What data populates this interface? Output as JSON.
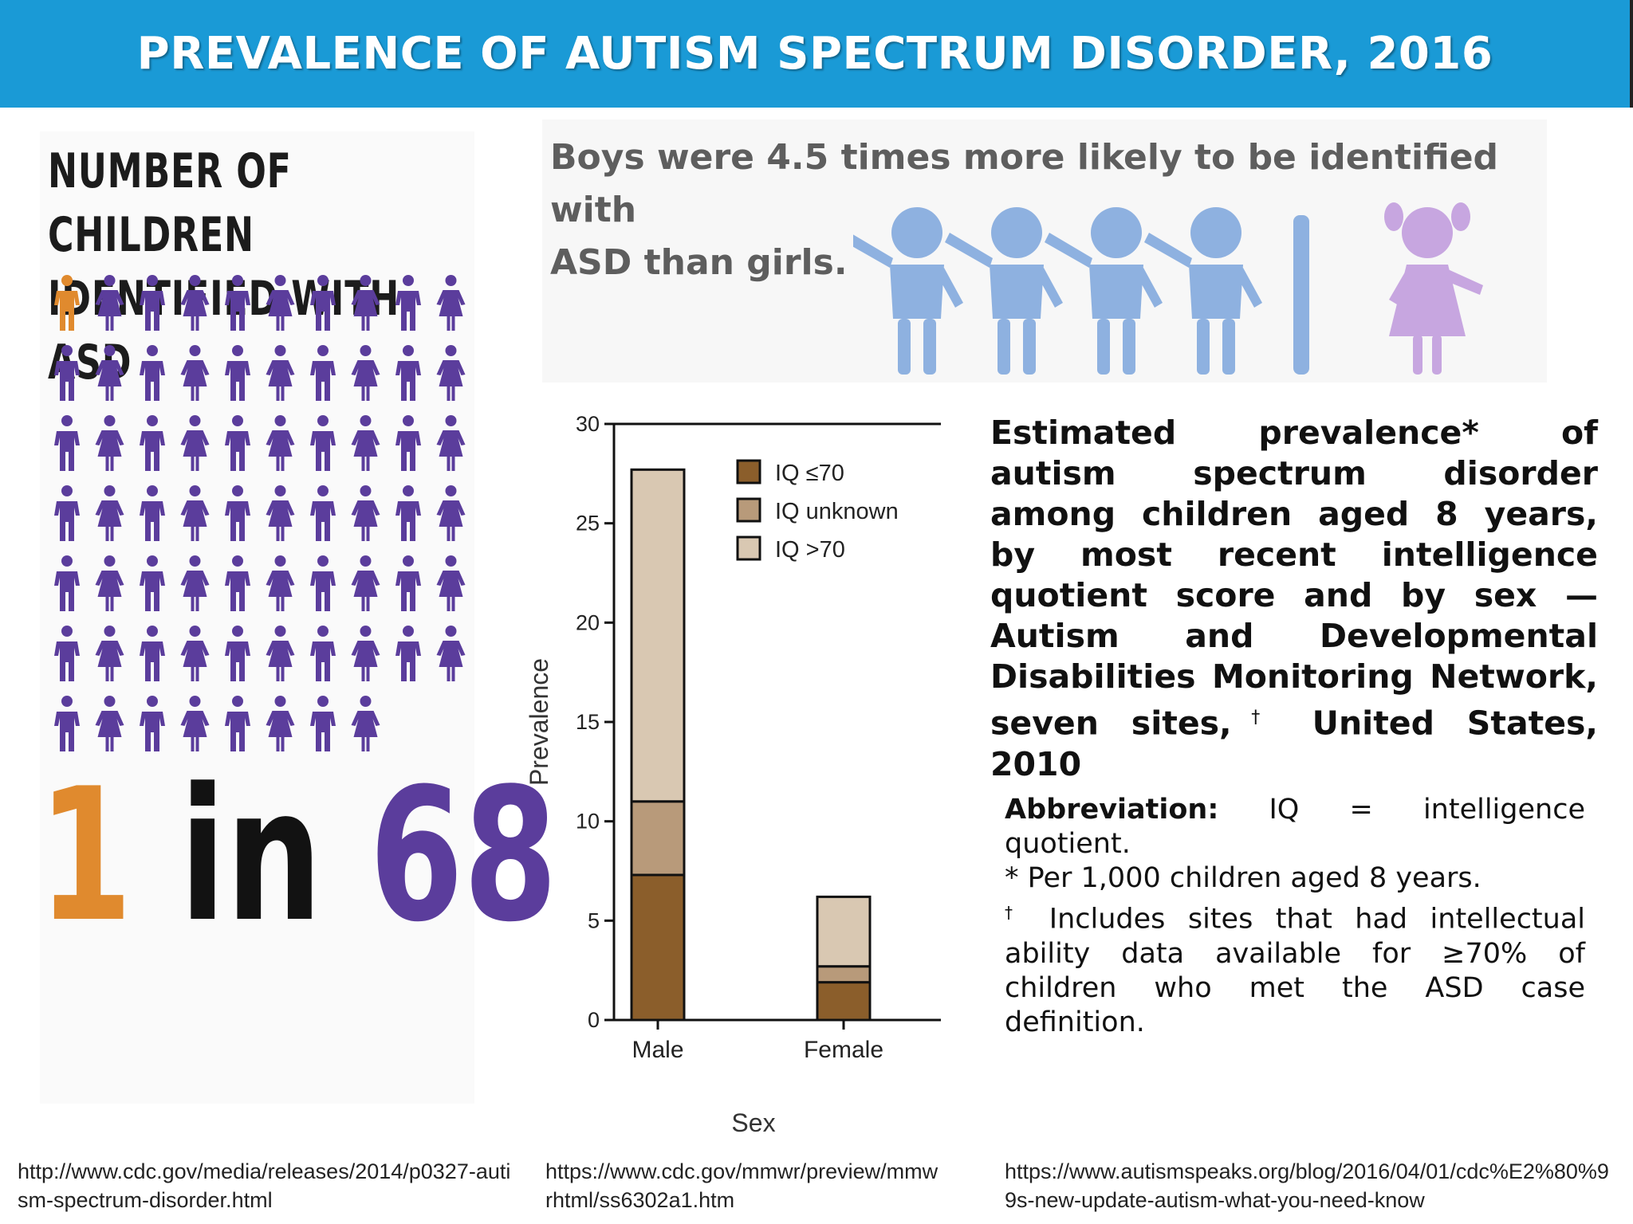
{
  "header": {
    "title": "PREVALENCE OF AUTISM SPECTRUM DISORDER, 2016"
  },
  "left": {
    "title_line1": "NUMBER OF CHILDREN",
    "title_line2": "IDENTIFIED WITH ASD",
    "ratio_num": "1",
    "ratio_mid": " in ",
    "ratio_den": "68",
    "highlight_color": "#e08a2e",
    "people_color": "#5b3d9c",
    "people_total": 68,
    "people_highlighted": 1
  },
  "boys": {
    "text_line1": "Boys were 4.5 times more likely to be identified with",
    "text_line2": "ASD than girls.",
    "boy_color": "#8eb1e0",
    "girl_color": "#c7a6e0"
  },
  "chart_data": {
    "type": "bar",
    "stacked": true,
    "categories": [
      "Male",
      "Female"
    ],
    "series": [
      {
        "name": "IQ ≤70",
        "values": [
          7.3,
          1.9
        ],
        "color": "#8b5e2b"
      },
      {
        "name": "IQ unknown",
        "values": [
          3.7,
          0.8
        ],
        "color": "#b89a7a"
      },
      {
        "name": "IQ >70",
        "values": [
          16.7,
          3.5
        ],
        "color": "#d9c8b2"
      }
    ],
    "xlabel": "Sex",
    "ylabel": "Prevalence",
    "ylim": [
      0,
      30
    ],
    "yticks": [
      "0",
      "5",
      "10",
      "15",
      "20",
      "25",
      "30"
    ],
    "legend": "top-right"
  },
  "caption": {
    "text": "Estimated prevalence* of autism spectrum disorder among children aged 8 years, by most recent intelligence quotient score and by sex — Autism and Developmental Disabilities Monitoring Network, seven sites,",
    "dagger": "†",
    "text_end": " United States, 2010"
  },
  "notes": {
    "abbr_label": "Abbreviation:",
    "abbr_text": " IQ = intelligence quotient.",
    "note1": "* Per 1,000 children aged 8 years.",
    "note2_mark": "†",
    "note2": " Includes sites that had intellectual ability data available for ≥70% of children who met the ASD case definition."
  },
  "sources": {
    "src1": "http://www.cdc.gov/media/releases/2014/p0327-autism-spectrum-disorder.html",
    "src2": "https://www.cdc.gov/mmwr/preview/mmwrhtml/ss6302a1.htm",
    "src3": "https://www.autismspeaks.org/blog/2016/04/01/cdc%E2%80%99s-new-update-autism-what-you-need-know"
  }
}
